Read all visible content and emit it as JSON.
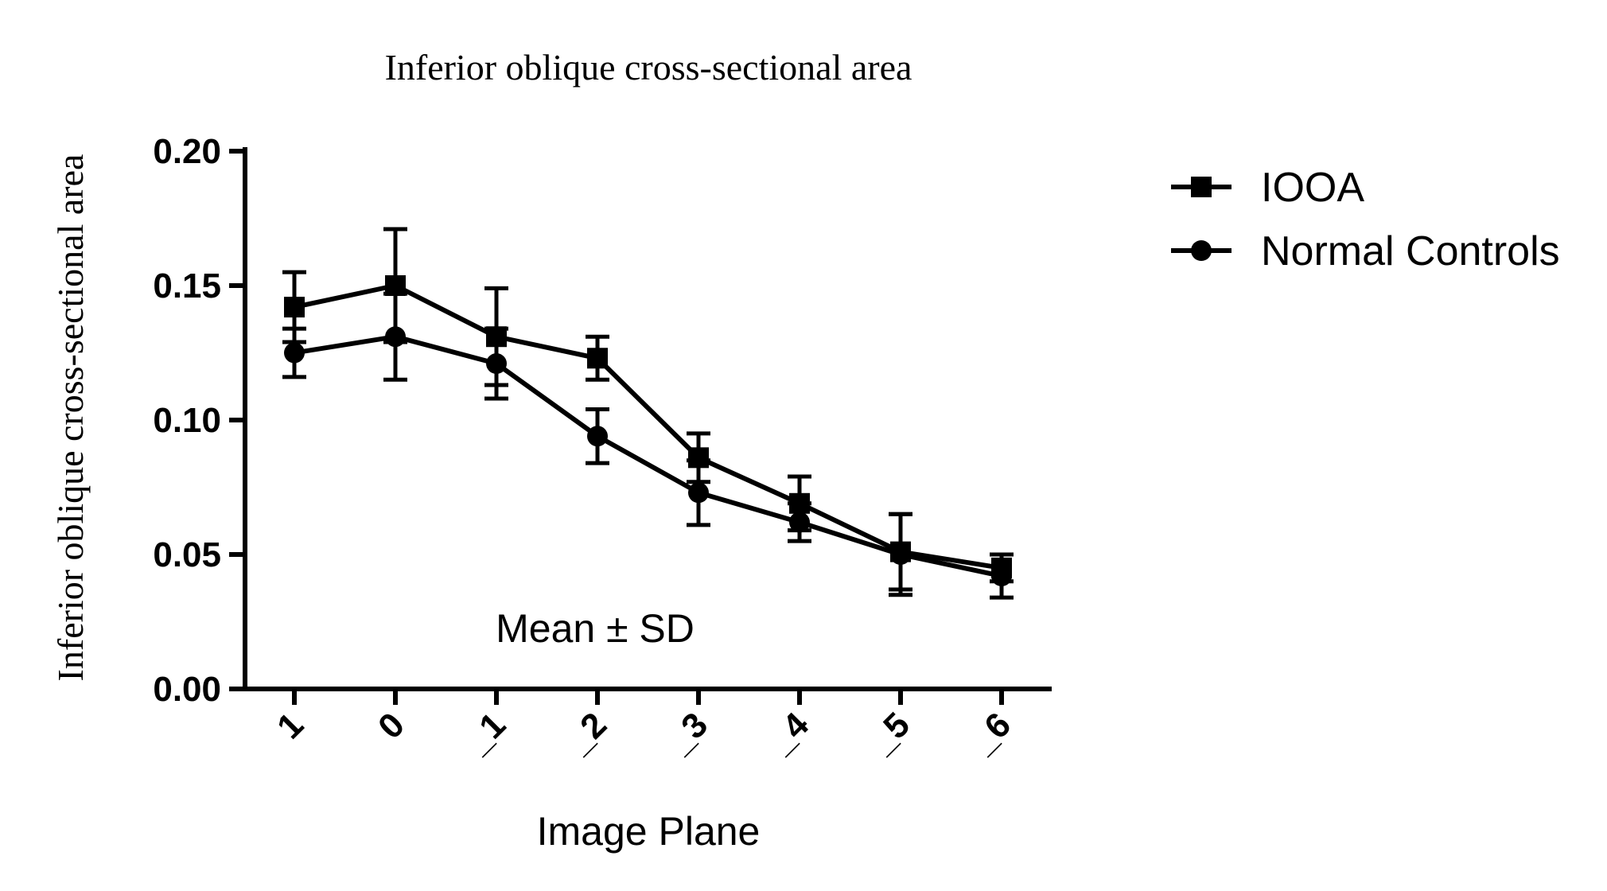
{
  "chart_data": {
    "type": "line",
    "title": "Inferior oblique cross-sectional area",
    "xlabel": "Image Plane",
    "ylabel": "Inferior oblique cross-sectional area",
    "categories": [
      "1",
      "0",
      "_1",
      "_2",
      "_3",
      "_4",
      "_5",
      "_6"
    ],
    "ylim": [
      0,
      0.2
    ],
    "yticks": [
      "0.00",
      "0.05",
      "0.10",
      "0.15",
      "0.20"
    ],
    "annotation": "Mean ± SD",
    "legend_position": "top-right",
    "grid": false,
    "series": [
      {
        "name": "IOOA",
        "marker": "square",
        "values": [
          0.142,
          0.15,
          0.131,
          0.123,
          0.086,
          0.069,
          0.051,
          0.045
        ],
        "sd": [
          0.013,
          0.021,
          0.018,
          0.008,
          0.009,
          0.01,
          0.014,
          0.005
        ]
      },
      {
        "name": "Normal Controls",
        "marker": "circle",
        "values": [
          0.125,
          0.131,
          0.121,
          0.094,
          0.073,
          0.062,
          0.05,
          0.042
        ],
        "sd": [
          0.009,
          0.016,
          0.013,
          0.01,
          0.012,
          0.007,
          0.015,
          0.008
        ]
      }
    ]
  }
}
